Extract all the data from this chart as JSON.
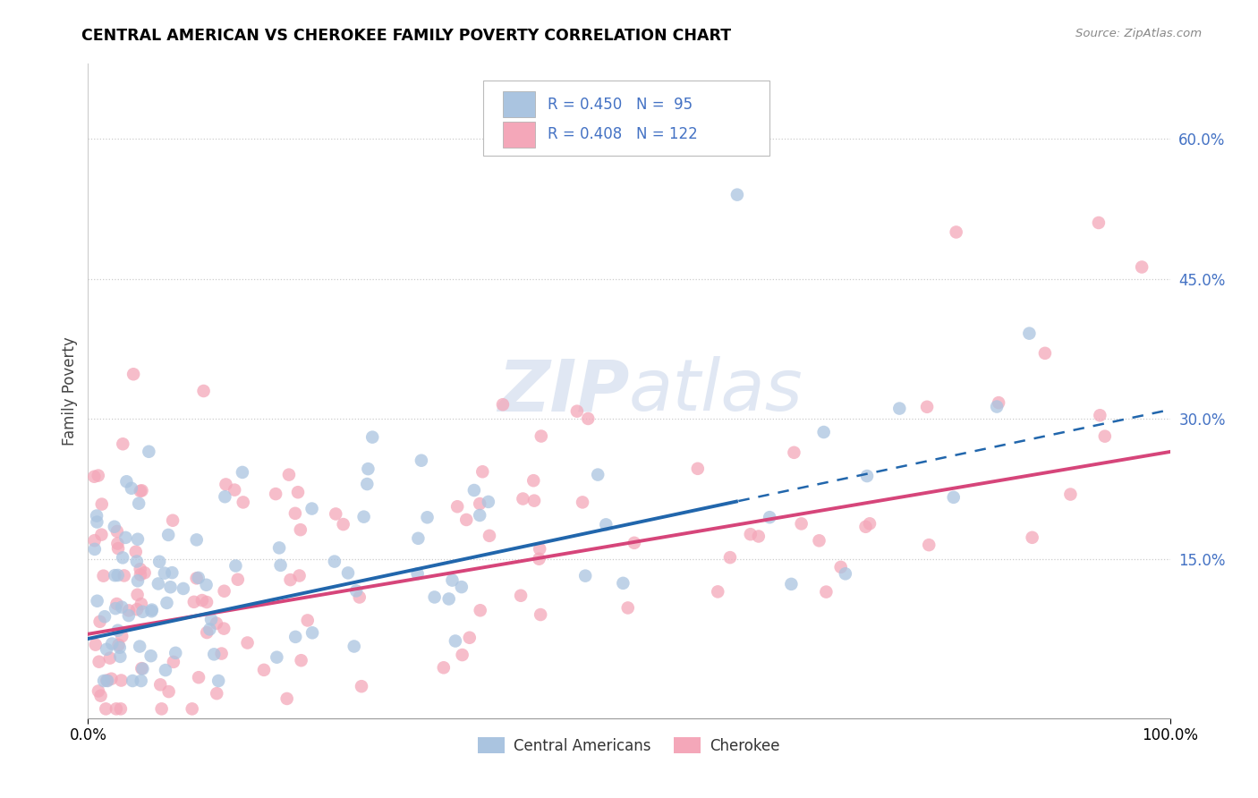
{
  "title": "CENTRAL AMERICAN VS CHEROKEE FAMILY POVERTY CORRELATION CHART",
  "source": "Source: ZipAtlas.com",
  "ylabel": "Family Poverty",
  "yticks": [
    0.0,
    0.15,
    0.3,
    0.45,
    0.6
  ],
  "ytick_labels": [
    "",
    "15.0%",
    "30.0%",
    "45.0%",
    "60.0%"
  ],
  "xmin": 0.0,
  "xmax": 1.0,
  "ymin": -0.02,
  "ymax": 0.68,
  "blue_color": "#aac4e0",
  "pink_color": "#f4a7b9",
  "blue_line_color": "#2166ac",
  "pink_line_color": "#d6457a",
  "tick_label_color": "#4472c4",
  "R_blue": 0.45,
  "N_blue": 95,
  "R_pink": 0.408,
  "N_pink": 122,
  "background_color": "#ffffff",
  "grid_color": "#cccccc",
  "watermark_color": "#ccd8eb",
  "watermark_alpha": 0.6,
  "blue_line_intercept": 0.065,
  "blue_line_slope": 0.245,
  "blue_line_solid_end": 0.6,
  "pink_line_intercept": 0.07,
  "pink_line_slope": 0.195,
  "pink_line_solid_end": 0.99
}
